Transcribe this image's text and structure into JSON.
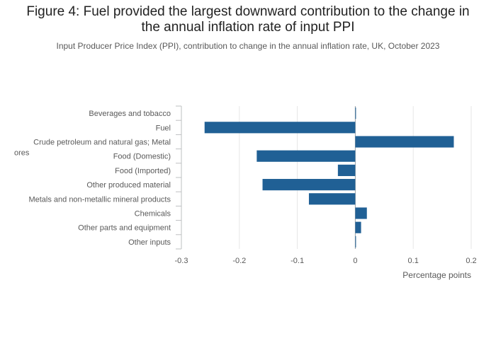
{
  "chart_data": {
    "type": "bar",
    "orientation": "horizontal",
    "title": "Figure 4: Fuel provided the largest downward contribution to the change in the annual inflation rate of input PPI",
    "title_lines": [
      "Figure 4: Fuel provided the largest downward contribution to the change in",
      "the annual inflation rate of input PPI"
    ],
    "subtitle": "Input Producer Price Index (PPI), contribution to change in the annual inflation rate, UK, October 2023",
    "xlabel": "Percentage points",
    "ylabel": "",
    "categories": [
      "Beverages and tobacco",
      "Fuel",
      "Crude petroleum and natural gas; Metal ores",
      "Food (Domestic)",
      "Food (Imported)",
      "Other produced material",
      "Metals and non-metallic mineral products",
      "Chemicals",
      "Other parts and equipment",
      "Other inputs"
    ],
    "category_label_lines": [
      [
        "Beverages and tobacco"
      ],
      [
        "Fuel"
      ],
      [
        "Crude petroleum and natural gas; Metal",
        "ores"
      ],
      [
        "Food (Domestic)"
      ],
      [
        "Food (Imported)"
      ],
      [
        "Other produced material"
      ],
      [
        "Metals and non-metallic mineral products"
      ],
      [
        "Chemicals"
      ],
      [
        "Other parts and equipment"
      ],
      [
        "Other inputs"
      ]
    ],
    "values": [
      0.0,
      -0.26,
      0.17,
      -0.17,
      -0.03,
      -0.16,
      -0.08,
      0.02,
      0.01,
      0.0
    ],
    "xlim": [
      -0.3,
      0.2
    ],
    "xticks": [
      -0.3,
      -0.2,
      -0.1,
      0,
      0.1,
      0.2
    ],
    "xtick_labels": [
      "-0.3",
      "-0.2",
      "-0.1",
      "0",
      "0.1",
      "0.2"
    ],
    "grid": true,
    "bar_color": "#206095",
    "grid_color": "#e6e6e6",
    "axis_color": "#bec0c2"
  }
}
